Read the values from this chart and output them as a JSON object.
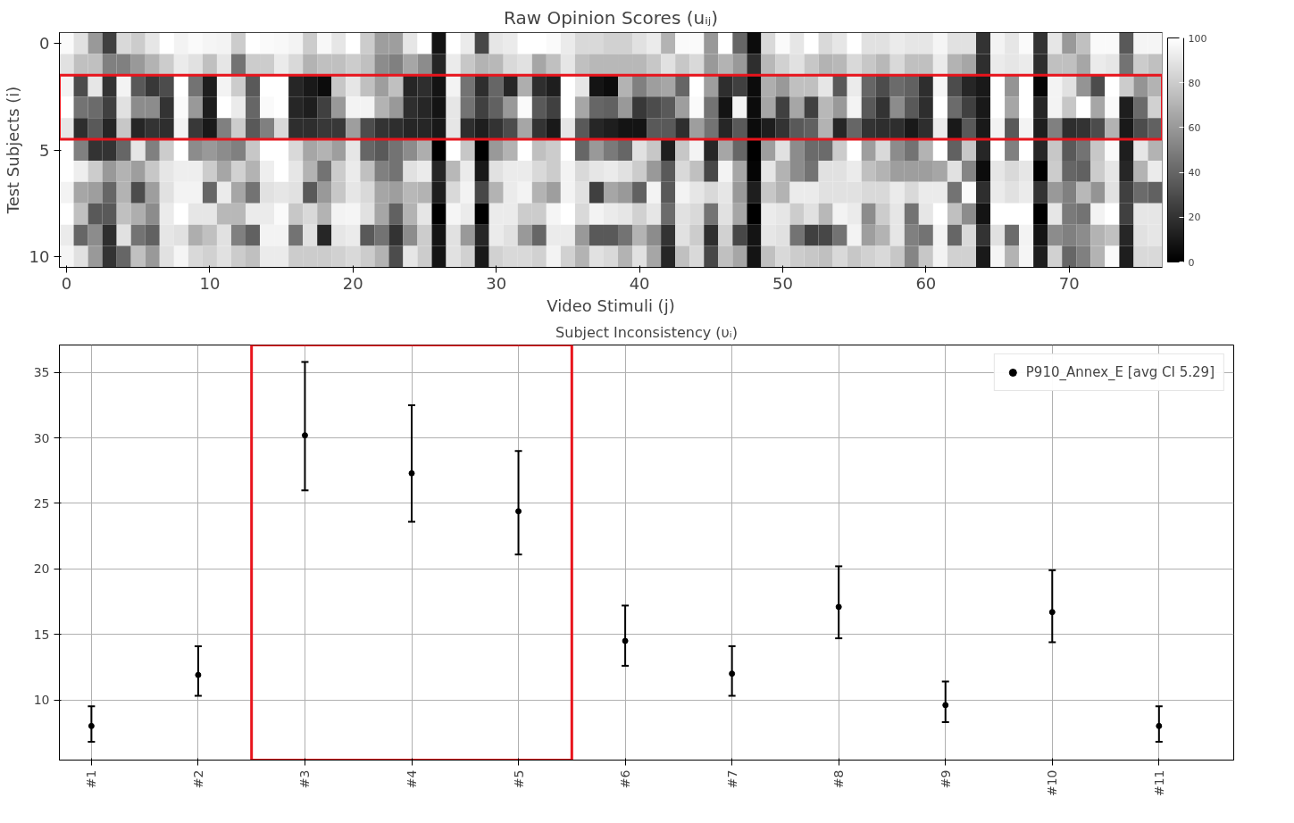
{
  "chart_data": [
    {
      "type": "heatmap",
      "title": "Raw Opinion Scores (uᵢⱼ)",
      "xlabel": "Video Stimuli (j)",
      "ylabel": "Test Subjects (i)",
      "categories": [
        "0",
        null,
        null,
        null,
        null,
        null,
        null,
        null,
        null,
        null,
        "10",
        null,
        null,
        null,
        null,
        null,
        null,
        null,
        null,
        null,
        "20",
        null,
        null,
        null,
        null,
        null,
        null,
        null,
        null,
        null,
        "30",
        null,
        null,
        null,
        null,
        null,
        null,
        null,
        null,
        null,
        "40",
        null,
        null,
        null,
        null,
        null,
        null,
        null,
        null,
        null,
        "50",
        null,
        null,
        null,
        null,
        null,
        null,
        null,
        null,
        null,
        "60",
        null,
        null,
        null,
        null,
        null,
        null,
        null,
        null,
        null,
        "70",
        null,
        null,
        null,
        null,
        null,
        null
      ],
      "y_categories": [
        "0",
        null,
        null,
        null,
        null,
        "5",
        null,
        null,
        null,
        null,
        "10"
      ],
      "cells": [
        [
          98,
          88,
          60,
          25,
          85,
          80,
          90,
          100,
          95,
          98,
          96,
          95,
          80,
          100,
          98,
          97,
          95,
          80,
          97,
          90,
          100,
          80,
          62,
          62,
          90,
          100,
          8,
          100,
          92,
          28,
          90,
          92,
          100,
          100,
          98,
          92,
          85,
          85,
          82,
          82,
          88,
          92,
          70,
          98,
          98,
          60,
          100,
          40,
          5,
          85,
          98,
          90,
          100,
          85,
          90,
          100,
          88,
          88,
          92,
          90,
          90,
          96,
          88,
          88,
          20,
          95,
          90,
          98,
          20,
          90,
          60,
          75,
          98,
          98,
          35,
          96,
          96
        ],
        [
          88,
          75,
          75,
          50,
          50,
          60,
          70,
          80,
          92,
          88,
          75,
          90,
          45,
          80,
          80,
          92,
          85,
          70,
          75,
          75,
          80,
          75,
          55,
          50,
          65,
          55,
          15,
          92,
          78,
          70,
          72,
          85,
          88,
          65,
          75,
          90,
          75,
          72,
          72,
          72,
          72,
          78,
          88,
          78,
          85,
          60,
          70,
          60,
          18,
          72,
          82,
          88,
          78,
          70,
          72,
          85,
          78,
          72,
          85,
          75,
          75,
          92,
          70,
          65,
          18,
          92,
          90,
          92,
          18,
          75,
          75,
          65,
          92,
          90,
          45,
          80,
          75
        ],
        [
          95,
          30,
          90,
          20,
          95,
          35,
          22,
          30,
          100,
          45,
          12,
          95,
          80,
          35,
          100,
          100,
          15,
          10,
          5,
          78,
          90,
          75,
          62,
          75,
          15,
          18,
          8,
          95,
          45,
          18,
          40,
          15,
          68,
          18,
          12,
          100,
          90,
          8,
          5,
          70,
          50,
          62,
          65,
          40,
          100,
          62,
          18,
          25,
          5,
          68,
          60,
          75,
          75,
          90,
          35,
          92,
          40,
          30,
          42,
          38,
          18,
          96,
          30,
          15,
          10,
          100,
          58,
          100,
          2,
          95,
          88,
          58,
          30,
          100,
          80,
          58,
          70
        ],
        [
          100,
          45,
          42,
          25,
          88,
          55,
          55,
          20,
          98,
          60,
          12,
          100,
          92,
          40,
          98,
          100,
          15,
          12,
          25,
          60,
          95,
          95,
          70,
          60,
          18,
          15,
          8,
          90,
          45,
          25,
          38,
          60,
          98,
          35,
          25,
          100,
          65,
          40,
          38,
          60,
          22,
          30,
          35,
          62,
          98,
          45,
          8,
          95,
          5,
          65,
          25,
          65,
          25,
          72,
          60,
          95,
          35,
          20,
          55,
          35,
          18,
          100,
          42,
          25,
          10,
          100,
          65,
          100,
          15,
          95,
          78,
          100,
          65,
          98,
          12,
          42,
          82
        ],
        [
          90,
          18,
          35,
          15,
          78,
          15,
          20,
          18,
          95,
          22,
          10,
          50,
          80,
          35,
          50,
          85,
          18,
          18,
          22,
          22,
          62,
          30,
          20,
          18,
          15,
          15,
          10,
          90,
          18,
          12,
          20,
          30,
          65,
          20,
          10,
          90,
          35,
          15,
          12,
          8,
          8,
          35,
          35,
          18,
          62,
          45,
          15,
          35,
          5,
          12,
          20,
          35,
          38,
          70,
          15,
          40,
          20,
          18,
          18,
          10,
          18,
          92,
          10,
          35,
          10,
          95,
          35,
          95,
          12,
          50,
          18,
          20,
          30,
          70,
          10,
          30,
          38
        ],
        [
          100,
          50,
          20,
          20,
          40,
          90,
          50,
          80,
          100,
          55,
          60,
          55,
          50,
          78,
          100,
          100,
          85,
          65,
          70,
          62,
          90,
          40,
          35,
          45,
          55,
          68,
          0,
          100,
          78,
          0,
          60,
          70,
          100,
          75,
          80,
          100,
          40,
          60,
          48,
          40,
          88,
          78,
          12,
          78,
          95,
          15,
          65,
          40,
          0,
          62,
          88,
          55,
          42,
          42,
          80,
          100,
          62,
          85,
          55,
          45,
          70,
          100,
          38,
          78,
          15,
          100,
          50,
          100,
          15,
          78,
          35,
          45,
          78,
          98,
          12,
          90,
          70
        ],
        [
          100,
          93,
          80,
          60,
          70,
          62,
          78,
          90,
          93,
          93,
          80,
          65,
          82,
          70,
          93,
          100,
          90,
          70,
          45,
          80,
          92,
          75,
          50,
          45,
          88,
          92,
          15,
          72,
          92,
          10,
          88,
          92,
          92,
          85,
          80,
          95,
          85,
          90,
          92,
          88,
          80,
          60,
          35,
          85,
          75,
          28,
          95,
          65,
          2,
          90,
          70,
          55,
          45,
          88,
          88,
          92,
          75,
          70,
          62,
          62,
          62,
          65,
          88,
          52,
          5,
          90,
          85,
          90,
          0,
          80,
          40,
          38,
          80,
          90,
          15,
          70,
          92
        ],
        [
          95,
          65,
          62,
          40,
          70,
          30,
          62,
          88,
          95,
          95,
          40,
          92,
          65,
          45,
          88,
          90,
          88,
          35,
          60,
          78,
          90,
          85,
          65,
          62,
          72,
          70,
          12,
          85,
          95,
          28,
          70,
          92,
          95,
          70,
          62,
          95,
          88,
          25,
          65,
          60,
          38,
          95,
          35,
          95,
          90,
          85,
          90,
          60,
          12,
          78,
          70,
          92,
          92,
          88,
          88,
          88,
          85,
          85,
          92,
          85,
          92,
          92,
          45,
          98,
          18,
          92,
          88,
          92,
          20,
          60,
          50,
          72,
          58,
          88,
          25,
          42,
          38
        ],
        [
          100,
          75,
          35,
          35,
          75,
          68,
          55,
          92,
          100,
          90,
          90,
          72,
          72,
          92,
          92,
          98,
          78,
          85,
          70,
          95,
          96,
          88,
          65,
          38,
          70,
          90,
          0,
          96,
          92,
          0,
          92,
          92,
          80,
          80,
          96,
          100,
          85,
          95,
          92,
          90,
          82,
          90,
          42,
          88,
          85,
          45,
          88,
          65,
          0,
          92,
          90,
          80,
          88,
          72,
          95,
          92,
          55,
          80,
          90,
          45,
          90,
          100,
          75,
          55,
          8,
          100,
          100,
          100,
          0,
          90,
          48,
          45,
          95,
          100,
          25,
          90,
          90
        ],
        [
          92,
          40,
          55,
          18,
          88,
          45,
          38,
          90,
          88,
          68,
          75,
          88,
          50,
          38,
          95,
          95,
          45,
          88,
          15,
          90,
          92,
          35,
          45,
          20,
          55,
          80,
          8,
          88,
          60,
          15,
          92,
          88,
          60,
          40,
          92,
          92,
          60,
          35,
          35,
          45,
          70,
          55,
          20,
          88,
          80,
          18,
          82,
          28,
          8,
          90,
          88,
          45,
          25,
          28,
          45,
          95,
          62,
          70,
          90,
          50,
          45,
          95,
          40,
          85,
          20,
          88,
          42,
          95,
          8,
          55,
          50,
          55,
          70,
          75,
          15,
          88,
          90
        ],
        [
          96,
          88,
          60,
          20,
          40,
          75,
          60,
          88,
          96,
          85,
          82,
          88,
          80,
          75,
          92,
          92,
          80,
          80,
          80,
          82,
          85,
          80,
          70,
          30,
          90,
          80,
          8,
          88,
          82,
          10,
          82,
          85,
          85,
          82,
          95,
          82,
          70,
          88,
          85,
          70,
          88,
          65,
          15,
          75,
          85,
          28,
          75,
          65,
          8,
          75,
          85,
          80,
          78,
          75,
          85,
          78,
          82,
          85,
          78,
          52,
          78,
          95,
          82,
          82,
          10,
          96,
          70,
          96,
          12,
          82,
          40,
          50,
          70,
          98,
          12,
          85,
          85
        ]
      ],
      "clim": [
        0,
        100
      ],
      "cticks": [
        0,
        20,
        40,
        60,
        80,
        100
      ]
    },
    {
      "type": "scatter",
      "title": "Subject Inconsistency (υᵢ)",
      "categories": [
        "#1",
        "#2",
        "#3",
        "#4",
        "#5",
        "#6",
        "#7",
        "#8",
        "#9",
        "#10",
        "#11"
      ],
      "series": [
        {
          "name": "P910_Annex_E [avg CI 5.29]",
          "color": "#000000",
          "values": [
            8.0,
            11.9,
            30.2,
            27.3,
            24.4,
            14.5,
            12.0,
            17.1,
            9.6,
            16.7,
            8.0
          ],
          "errors": [
            [
              6.8,
              9.5
            ],
            [
              10.3,
              14.1
            ],
            [
              26.0,
              35.8
            ],
            [
              23.6,
              32.5
            ],
            [
              21.1,
              29.0
            ],
            [
              12.6,
              17.2
            ],
            [
              10.3,
              14.1
            ],
            [
              14.7,
              20.2
            ],
            [
              8.3,
              11.4
            ],
            [
              14.4,
              19.9
            ],
            [
              6.8,
              9.5
            ]
          ]
        }
      ],
      "ylim": [
        5.4,
        37.1
      ],
      "yticks": [
        10,
        15,
        20,
        25,
        30,
        35
      ],
      "grid": true,
      "legend": "top right",
      "marker": "circle"
    }
  ]
}
